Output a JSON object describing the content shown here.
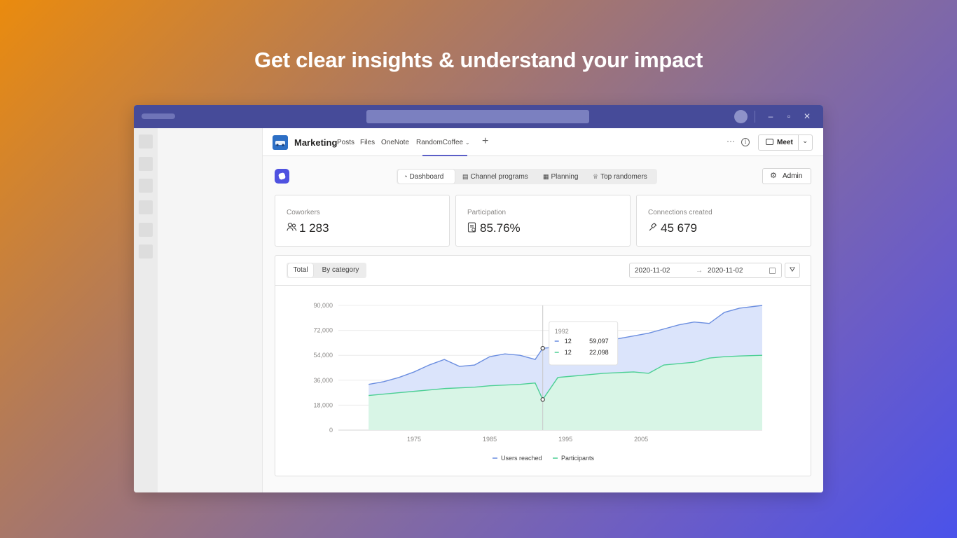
{
  "headline": "Get clear insights & understand your impact",
  "team": {
    "name": "Marketing"
  },
  "channel_tabs": [
    {
      "label": "Posts"
    },
    {
      "label": "Files"
    },
    {
      "label": "OneNote"
    },
    {
      "label": "RandomCoffee",
      "active": true
    }
  ],
  "channel_actions": {
    "meet_label": "Meet"
  },
  "app_nav": [
    {
      "label": "Dashboard",
      "icon": "dashboard-icon",
      "active": true
    },
    {
      "label": "Channel programs",
      "icon": "clipboard-icon"
    },
    {
      "label": "Planning",
      "icon": "calendar-icon"
    },
    {
      "label": "Top randomers",
      "icon": "trophy-icon"
    }
  ],
  "admin_label": "Admin",
  "stats": [
    {
      "label": "Coworkers",
      "value": "1 283",
      "icon": "people-icon"
    },
    {
      "label": "Participation",
      "value": "85.76%",
      "icon": "form-icon"
    },
    {
      "label": "Connections created",
      "value": "45 679",
      "icon": "link-icon"
    }
  ],
  "chart_controls": {
    "segments": [
      {
        "label": "Total",
        "active": true
      },
      {
        "label": "By category"
      }
    ],
    "date_from": "2020-11-02",
    "date_to": "2020-11-02"
  },
  "chart_data": {
    "type": "area",
    "x": [
      1969,
      1971,
      1973,
      1975,
      1977,
      1979,
      1981,
      1983,
      1985,
      1987,
      1989,
      1991,
      1992,
      1994,
      1996,
      1998,
      2000,
      2002,
      2004,
      2006,
      2008,
      2010,
      2012,
      2014,
      2016,
      2018,
      2021
    ],
    "series": [
      {
        "name": "Users reached",
        "color": "#6b8ee0",
        "values": [
          33000,
          35000,
          38000,
          42000,
          47000,
          51000,
          46000,
          47000,
          53000,
          55000,
          54000,
          51000,
          59097,
          60000,
          62000,
          63000,
          64000,
          66000,
          68000,
          70000,
          73000,
          76000,
          78000,
          77000,
          85000,
          88000,
          90000
        ]
      },
      {
        "name": "Participants",
        "color": "#4ccf94",
        "values": [
          25000,
          26000,
          27000,
          28000,
          29000,
          30000,
          30500,
          31000,
          32000,
          32500,
          33000,
          34000,
          22098,
          38000,
          39000,
          40000,
          41000,
          41500,
          42000,
          41000,
          47000,
          48000,
          49000,
          52000,
          53000,
          53500,
          54000
        ]
      }
    ],
    "x_ticks": [
      1975,
      1985,
      1995,
      2005
    ],
    "y_ticks": [
      0,
      18000,
      36000,
      54000,
      72000,
      90000
    ],
    "y_tick_labels": [
      "0",
      "18,000",
      "36,000",
      "54,000",
      "72,000",
      "90,000"
    ],
    "ylim": [
      0,
      90000
    ],
    "legend_position": "bottom",
    "tooltip": {
      "title": "1992",
      "rows": [
        {
          "label": "12",
          "value": "59,097",
          "color": "#6b8ee0"
        },
        {
          "label": "12",
          "value": "22,098",
          "color": "#4ccf94"
        }
      ]
    }
  }
}
